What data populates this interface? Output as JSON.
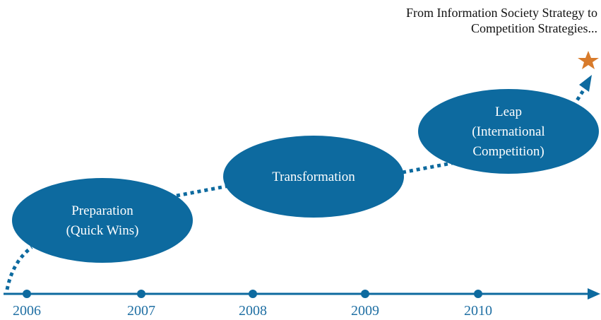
{
  "header": {
    "lines": [
      "From Information Society Strategy to",
      "Competition Strategies..."
    ]
  },
  "stages": [
    {
      "lines": [
        "Preparation",
        "(Quick Wins)"
      ]
    },
    {
      "lines": [
        "Transformation"
      ]
    },
    {
      "lines": [
        "Leap",
        "(International",
        "Competition)"
      ]
    }
  ],
  "years": [
    "2006",
    "2007",
    "2008",
    "2009",
    "2010"
  ]
}
